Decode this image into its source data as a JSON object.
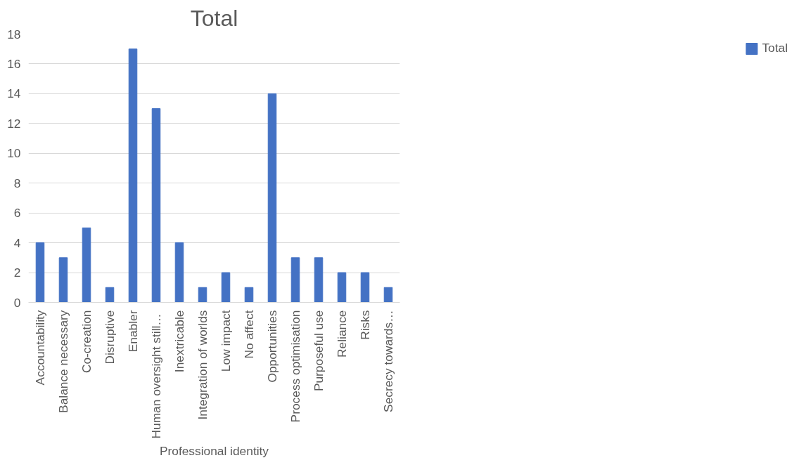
{
  "chart_data": {
    "type": "bar",
    "title": "Total",
    "xlabel": "Professional identity",
    "categories": [
      "Accountability",
      "Balance necessary",
      "Co-creation",
      "Disruptive",
      "Enabler",
      "Human oversight  still…",
      "Inextricable",
      "Integration of worlds",
      "Low impact",
      "No affect",
      "Opportunities",
      "Process optimisation",
      "Purposeful use",
      "Reliance",
      "Risks",
      "Secrecy towards…"
    ],
    "series": [
      {
        "name": "Total",
        "color": "#4472c4",
        "values": [
          4,
          3,
          5,
          1,
          17,
          13,
          4,
          1,
          2,
          1,
          14,
          3,
          3,
          2,
          2,
          1
        ]
      }
    ],
    "ylim": [
      0,
      18
    ],
    "yticks": [
      0,
      2,
      4,
      6,
      8,
      10,
      12,
      14,
      16,
      18
    ],
    "grid": "y",
    "legend": "right"
  }
}
